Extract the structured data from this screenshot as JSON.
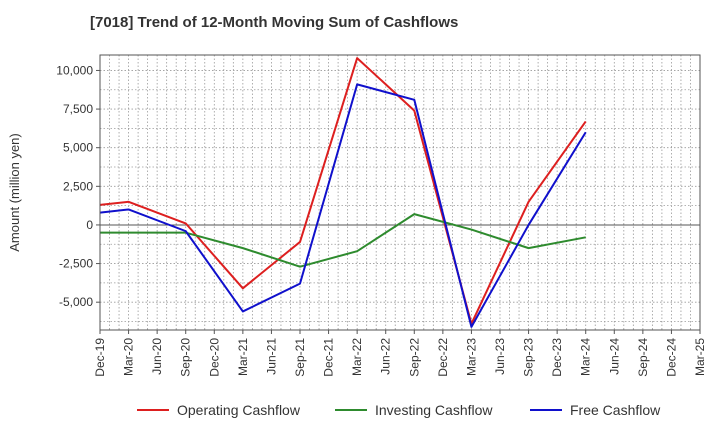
{
  "title": "[7018]  Trend of 12-Month Moving Sum of Cashflows",
  "chart_data": {
    "type": "line",
    "title": "[7018]  Trend of 12-Month Moving Sum of Cashflows",
    "xlabel": "",
    "ylabel": "Amount (million yen)",
    "categories": [
      "Dec-19",
      "Mar-20",
      "Jun-20",
      "Sep-20",
      "Dec-20",
      "Mar-21",
      "Jun-21",
      "Sep-21",
      "Dec-21",
      "Mar-22",
      "Jun-22",
      "Sep-22",
      "Dec-22",
      "Mar-23",
      "Jun-23",
      "Sep-23",
      "Dec-23",
      "Mar-24",
      "Jun-24",
      "Sep-24",
      "Dec-24",
      "Mar-25"
    ],
    "ylim": [
      -6800,
      11000
    ],
    "yticks": [
      -5000,
      -2500,
      0,
      2500,
      5000,
      7500,
      10000
    ],
    "ytick_labels": [
      "-5,000",
      "-2,500",
      "0",
      "2,500",
      "5,000",
      "7,500",
      "10,000"
    ],
    "grid": true,
    "legend_position": "bottom",
    "series": [
      {
        "name": "Operating Cashflow",
        "color": "#dd1f1f",
        "x": [
          "Dec-19",
          "Mar-20",
          "Sep-20",
          "Mar-21",
          "Sep-21",
          "Mar-22",
          "Sep-22",
          "Mar-23",
          "Sep-23",
          "Mar-24"
        ],
        "values": [
          1300,
          1500,
          100,
          -4100,
          -1100,
          10800,
          7400,
          -6400,
          1500,
          6700
        ]
      },
      {
        "name": "Investing Cashflow",
        "color": "#2e8b2e",
        "x": [
          "Dec-19",
          "Mar-20",
          "Sep-20",
          "Mar-21",
          "Sep-21",
          "Mar-22",
          "Sep-22",
          "Mar-23",
          "Sep-23",
          "Mar-24"
        ],
        "values": [
          -500,
          -500,
          -500,
          -1500,
          -2700,
          -1700,
          700,
          -300,
          -1500,
          -800
        ]
      },
      {
        "name": "Free Cashflow",
        "color": "#1010cc",
        "x": [
          "Dec-19",
          "Mar-20",
          "Sep-20",
          "Mar-21",
          "Sep-21",
          "Mar-22",
          "Sep-22",
          "Mar-23",
          "Sep-23",
          "Mar-24"
        ],
        "values": [
          800,
          1000,
          -400,
          -5600,
          -3800,
          9100,
          8100,
          -6600,
          0,
          6000
        ]
      }
    ]
  }
}
